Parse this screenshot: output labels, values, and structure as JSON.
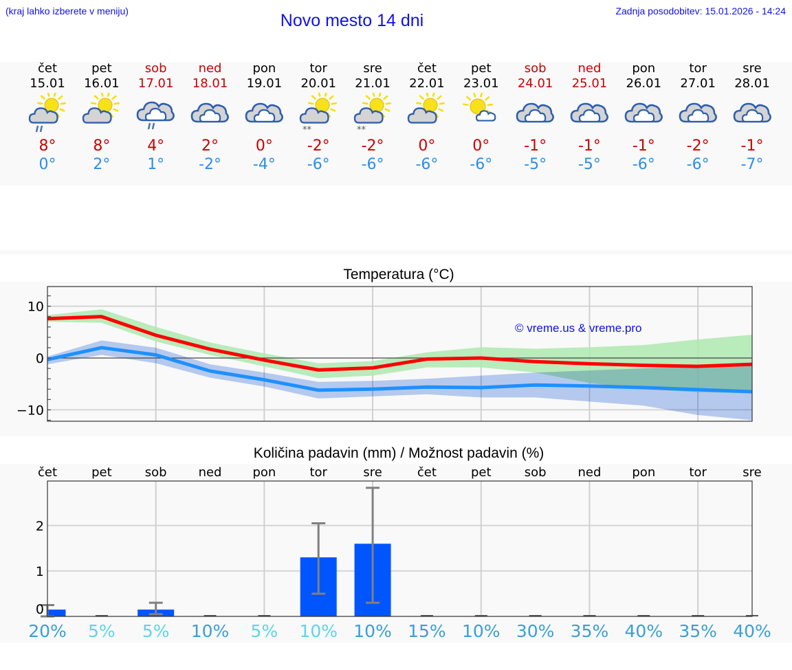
{
  "header": {
    "menu_hint": "(kraj lahko izberete v meniju)",
    "title": "Novo mesto 14 dni",
    "last_update": "Zadnja posodobitev: 15.01.2026 - 14:24"
  },
  "colors": {
    "header_text": "#1010ee",
    "weekend": "#cc0000",
    "weekday": "#000000",
    "tmax": "#cc0000",
    "tmin": "#2b8de8",
    "max_line": "#ff0000",
    "min_line": "#1e90ff",
    "max_band": "#aee9b0",
    "min_band": "#aec6f2",
    "overlap_band": "#7cc8a8",
    "precip_bar": "#0055ff",
    "error_bar": "#808080",
    "pct_light": "#5cd6e6",
    "pct_dark": "#3a9fd6"
  },
  "days": [
    {
      "name": "čet",
      "date": "15.01",
      "weekend": false,
      "icon": "partly-cloudy-rain-icon",
      "tmax": "8°",
      "tmin": "0°"
    },
    {
      "name": "pet",
      "date": "16.01",
      "weekend": false,
      "icon": "partly-cloudy-icon",
      "tmax": "8°",
      "tmin": "2°"
    },
    {
      "name": "sob",
      "date": "17.01",
      "weekend": true,
      "icon": "cloudy-rain-icon",
      "tmax": "4°",
      "tmin": "1°"
    },
    {
      "name": "ned",
      "date": "18.01",
      "weekend": true,
      "icon": "cloudy-icon",
      "tmax": "2°",
      "tmin": "-2°"
    },
    {
      "name": "pon",
      "date": "19.01",
      "weekend": false,
      "icon": "cloudy-icon",
      "tmax": "0°",
      "tmin": "-4°"
    },
    {
      "name": "tor",
      "date": "20.01",
      "weekend": false,
      "icon": "partly-cloudy-snow-icon",
      "tmax": "-2°",
      "tmin": "-6°"
    },
    {
      "name": "sre",
      "date": "21.01",
      "weekend": false,
      "icon": "partly-cloudy-snow-icon",
      "tmax": "-2°",
      "tmin": "-6°"
    },
    {
      "name": "čet",
      "date": "22.01",
      "weekend": false,
      "icon": "partly-cloudy-icon",
      "tmax": "0°",
      "tmin": "-6°"
    },
    {
      "name": "pet",
      "date": "23.01",
      "weekend": false,
      "icon": "mostly-sunny-icon",
      "tmax": "0°",
      "tmin": "-6°"
    },
    {
      "name": "sob",
      "date": "24.01",
      "weekend": true,
      "icon": "cloudy-icon",
      "tmax": "-1°",
      "tmin": "-5°"
    },
    {
      "name": "ned",
      "date": "25.01",
      "weekend": true,
      "icon": "cloudy-icon",
      "tmax": "-1°",
      "tmin": "-5°"
    },
    {
      "name": "pon",
      "date": "26.01",
      "weekend": false,
      "icon": "cloudy-icon",
      "tmax": "-1°",
      "tmin": "-6°"
    },
    {
      "name": "tor",
      "date": "27.01",
      "weekend": false,
      "icon": "cloudy-icon",
      "tmax": "-2°",
      "tmin": "-6°"
    },
    {
      "name": "sre",
      "date": "28.01",
      "weekend": false,
      "icon": "cloudy-icon",
      "tmax": "-1°",
      "tmin": "-7°"
    }
  ],
  "watermark": "© vreme.us & vreme.pro",
  "chart_data": [
    {
      "type": "line",
      "title": "Temperatura (°C)",
      "xlabel": "",
      "ylabel": "",
      "ylim": [
        -12.2,
        13.8
      ],
      "yticks": [
        10,
        0,
        -10
      ],
      "ytick_labels": [
        "10",
        "0",
        "−10"
      ],
      "grid": true,
      "x": [
        "15.01",
        "16.01",
        "17.01",
        "18.01",
        "19.01",
        "20.01",
        "21.01",
        "22.01",
        "23.01",
        "24.01",
        "25.01",
        "26.01",
        "27.01",
        "28.01"
      ],
      "series": [
        {
          "name": "max",
          "color": "#ff0000",
          "values": [
            7.6,
            8.0,
            4.4,
            1.7,
            -0.4,
            -2.3,
            -1.9,
            -0.2,
            0.0,
            -0.7,
            -1.1,
            -1.4,
            -1.6,
            -1.2
          ],
          "band_low": [
            7.0,
            6.8,
            3.2,
            0.6,
            -1.6,
            -3.9,
            -3.4,
            -1.8,
            -1.8,
            -2.8,
            -4.8,
            -6.0,
            -6.6,
            -6.8
          ],
          "band_high": [
            8.3,
            9.4,
            6.0,
            3.0,
            0.9,
            -1.0,
            -0.6,
            1.1,
            2.1,
            1.8,
            2.1,
            2.5,
            3.6,
            4.5
          ]
        },
        {
          "name": "min",
          "color": "#1e90ff",
          "values": [
            -0.3,
            2.0,
            0.6,
            -2.5,
            -4.2,
            -6.2,
            -6.0,
            -5.6,
            -5.7,
            -5.2,
            -5.4,
            -5.7,
            -6.1,
            -6.5
          ],
          "band_low": [
            -1.2,
            0.6,
            -1.0,
            -3.8,
            -5.5,
            -7.8,
            -7.4,
            -7.0,
            -7.6,
            -7.6,
            -8.4,
            -9.2,
            -11.0,
            -12.0
          ],
          "band_high": [
            0.3,
            3.4,
            2.0,
            -1.2,
            -2.8,
            -4.6,
            -4.4,
            -4.0,
            -3.4,
            -2.8,
            -2.4,
            -2.0,
            -1.6,
            -1.2
          ]
        }
      ]
    },
    {
      "type": "bar",
      "title": "Količina padavin (mm) / Možnost padavin (%)",
      "categories": [
        "čet",
        "pet",
        "sob",
        "ned",
        "pon",
        "tor",
        "sre",
        "čet",
        "pet",
        "sob",
        "ned",
        "pon",
        "tor",
        "sre"
      ],
      "values": [
        0.15,
        0,
        0.15,
        0,
        0,
        1.3,
        1.6,
        0,
        0,
        0,
        0,
        0,
        0,
        0
      ],
      "error_low": [
        0.0,
        0,
        0.05,
        0,
        0,
        0.5,
        0.3,
        0,
        0,
        0,
        0,
        0,
        0,
        0
      ],
      "error_high": [
        0.25,
        0,
        0.3,
        0,
        0,
        2.05,
        2.83,
        0,
        0,
        0,
        0,
        0,
        0,
        0
      ],
      "probability": [
        "20%",
        "5%",
        "5%",
        "10%",
        "5%",
        "10%",
        "10%",
        "15%",
        "10%",
        "30%",
        "35%",
        "40%",
        "35%",
        "40%"
      ],
      "ylim": [
        0,
        2.98
      ],
      "yticks": [
        0,
        1,
        2
      ],
      "grid": true,
      "ylabel": "mm"
    }
  ]
}
